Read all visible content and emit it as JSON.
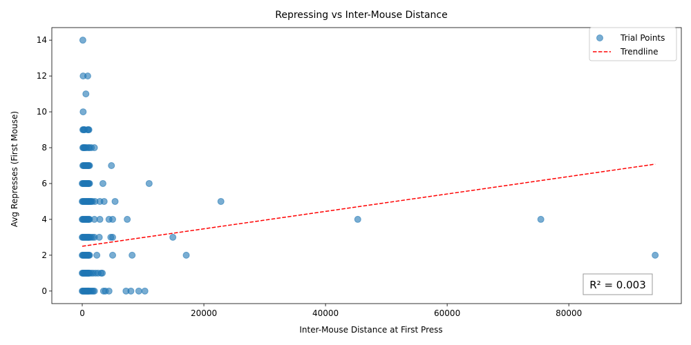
{
  "chart_data": {
    "type": "scatter",
    "title": "Repressing vs Inter-Mouse Distance",
    "xlabel": "Inter-Mouse Distance at First Press",
    "ylabel": "Avg Represses (First Mouse)",
    "xlim": [
      -5000,
      98500
    ],
    "ylim": [
      -0.7,
      14.7
    ],
    "xticks": [
      0,
      20000,
      40000,
      60000,
      80000
    ],
    "xtick_labels": [
      "0",
      "20000",
      "40000",
      "60000",
      "80000"
    ],
    "yticks": [
      0,
      2,
      4,
      6,
      8,
      10,
      12,
      14
    ],
    "ytick_labels": [
      "0",
      "2",
      "4",
      "6",
      "8",
      "10",
      "12",
      "14"
    ],
    "grid": false,
    "legend_position": "top-right",
    "series": [
      {
        "name": "Trial Points",
        "kind": "scatter",
        "color": "#1f77b4",
        "points": [
          [
            100,
            14
          ],
          [
            150,
            12
          ],
          [
            900,
            12
          ],
          [
            600,
            11
          ],
          [
            150,
            10
          ],
          [
            100,
            9
          ],
          [
            200,
            9
          ],
          [
            300,
            9
          ],
          [
            400,
            9
          ],
          [
            900,
            9
          ],
          [
            1000,
            9
          ],
          [
            1100,
            9
          ],
          [
            100,
            8
          ],
          [
            200,
            8
          ],
          [
            300,
            8
          ],
          [
            400,
            8
          ],
          [
            500,
            8
          ],
          [
            700,
            8
          ],
          [
            1000,
            8
          ],
          [
            1200,
            8
          ],
          [
            1500,
            8
          ],
          [
            2000,
            8
          ],
          [
            100,
            7
          ],
          [
            200,
            7
          ],
          [
            300,
            7
          ],
          [
            400,
            7
          ],
          [
            500,
            7
          ],
          [
            600,
            7
          ],
          [
            700,
            7
          ],
          [
            800,
            7
          ],
          [
            900,
            7
          ],
          [
            1000,
            7
          ],
          [
            1100,
            7
          ],
          [
            1200,
            7
          ],
          [
            4800,
            7
          ],
          [
            0,
            6
          ],
          [
            100,
            6
          ],
          [
            200,
            6
          ],
          [
            300,
            6
          ],
          [
            400,
            6
          ],
          [
            500,
            6
          ],
          [
            600,
            6
          ],
          [
            700,
            6
          ],
          [
            800,
            6
          ],
          [
            900,
            6
          ],
          [
            1000,
            6
          ],
          [
            1100,
            6
          ],
          [
            1200,
            6
          ],
          [
            3400,
            6
          ],
          [
            11000,
            6
          ],
          [
            0,
            5
          ],
          [
            100,
            5
          ],
          [
            200,
            5
          ],
          [
            300,
            5
          ],
          [
            400,
            5
          ],
          [
            500,
            5
          ],
          [
            600,
            5
          ],
          [
            700,
            5
          ],
          [
            800,
            5
          ],
          [
            900,
            5
          ],
          [
            1000,
            5
          ],
          [
            1100,
            5
          ],
          [
            1200,
            5
          ],
          [
            1300,
            5
          ],
          [
            1400,
            5
          ],
          [
            1500,
            5
          ],
          [
            1700,
            5
          ],
          [
            2100,
            5
          ],
          [
            2900,
            5
          ],
          [
            3600,
            5
          ],
          [
            5400,
            5
          ],
          [
            22800,
            5
          ],
          [
            0,
            4
          ],
          [
            100,
            4
          ],
          [
            200,
            4
          ],
          [
            300,
            4
          ],
          [
            400,
            4
          ],
          [
            500,
            4
          ],
          [
            600,
            4
          ],
          [
            700,
            4
          ],
          [
            800,
            4
          ],
          [
            900,
            4
          ],
          [
            1000,
            4
          ],
          [
            1100,
            4
          ],
          [
            1200,
            4
          ],
          [
            2000,
            4
          ],
          [
            2900,
            4
          ],
          [
            4400,
            4
          ],
          [
            5000,
            4
          ],
          [
            7400,
            4
          ],
          [
            45300,
            4
          ],
          [
            75400,
            4
          ],
          [
            0,
            3
          ],
          [
            100,
            3
          ],
          [
            200,
            3
          ],
          [
            300,
            3
          ],
          [
            400,
            3
          ],
          [
            500,
            3
          ],
          [
            600,
            3
          ],
          [
            700,
            3
          ],
          [
            800,
            3
          ],
          [
            900,
            3
          ],
          [
            1000,
            3
          ],
          [
            1100,
            3
          ],
          [
            1200,
            3
          ],
          [
            1400,
            3
          ],
          [
            1700,
            3
          ],
          [
            2000,
            3
          ],
          [
            2800,
            3
          ],
          [
            4700,
            3
          ],
          [
            5000,
            3
          ],
          [
            14900,
            3
          ],
          [
            0,
            2
          ],
          [
            100,
            2
          ],
          [
            200,
            2
          ],
          [
            300,
            2
          ],
          [
            400,
            2
          ],
          [
            500,
            2
          ],
          [
            600,
            2
          ],
          [
            700,
            2
          ],
          [
            800,
            2
          ],
          [
            900,
            2
          ],
          [
            1000,
            2
          ],
          [
            1100,
            2
          ],
          [
            1200,
            2
          ],
          [
            2400,
            2
          ],
          [
            5000,
            2
          ],
          [
            8200,
            2
          ],
          [
            17100,
            2
          ],
          [
            94200,
            2
          ],
          [
            0,
            1
          ],
          [
            100,
            1
          ],
          [
            200,
            1
          ],
          [
            300,
            1
          ],
          [
            400,
            1
          ],
          [
            500,
            1
          ],
          [
            600,
            1
          ],
          [
            700,
            1
          ],
          [
            800,
            1
          ],
          [
            900,
            1
          ],
          [
            1000,
            1
          ],
          [
            1100,
            1
          ],
          [
            1200,
            1
          ],
          [
            1500,
            1
          ],
          [
            1800,
            1
          ],
          [
            2200,
            1
          ],
          [
            2600,
            1
          ],
          [
            3100,
            1
          ],
          [
            3300,
            1
          ],
          [
            0,
            0
          ],
          [
            100,
            0
          ],
          [
            200,
            0
          ],
          [
            300,
            0
          ],
          [
            400,
            0
          ],
          [
            500,
            0
          ],
          [
            600,
            0
          ],
          [
            700,
            0
          ],
          [
            800,
            0
          ],
          [
            900,
            0
          ],
          [
            1000,
            0
          ],
          [
            1100,
            0
          ],
          [
            1200,
            0
          ],
          [
            1400,
            0
          ],
          [
            1600,
            0
          ],
          [
            1800,
            0
          ],
          [
            2000,
            0
          ],
          [
            3500,
            0
          ],
          [
            3800,
            0
          ],
          [
            4400,
            0
          ],
          [
            7200,
            0
          ],
          [
            8000,
            0
          ],
          [
            9300,
            0
          ],
          [
            10300,
            0
          ]
        ]
      },
      {
        "name": "Trendline",
        "kind": "line",
        "color": "#ff0000",
        "dashed": true,
        "x": [
          0,
          94200
        ],
        "y": [
          2.5,
          7.08
        ]
      }
    ],
    "annotation": {
      "text": "R² = 0.003",
      "position": "bottom-right"
    }
  }
}
